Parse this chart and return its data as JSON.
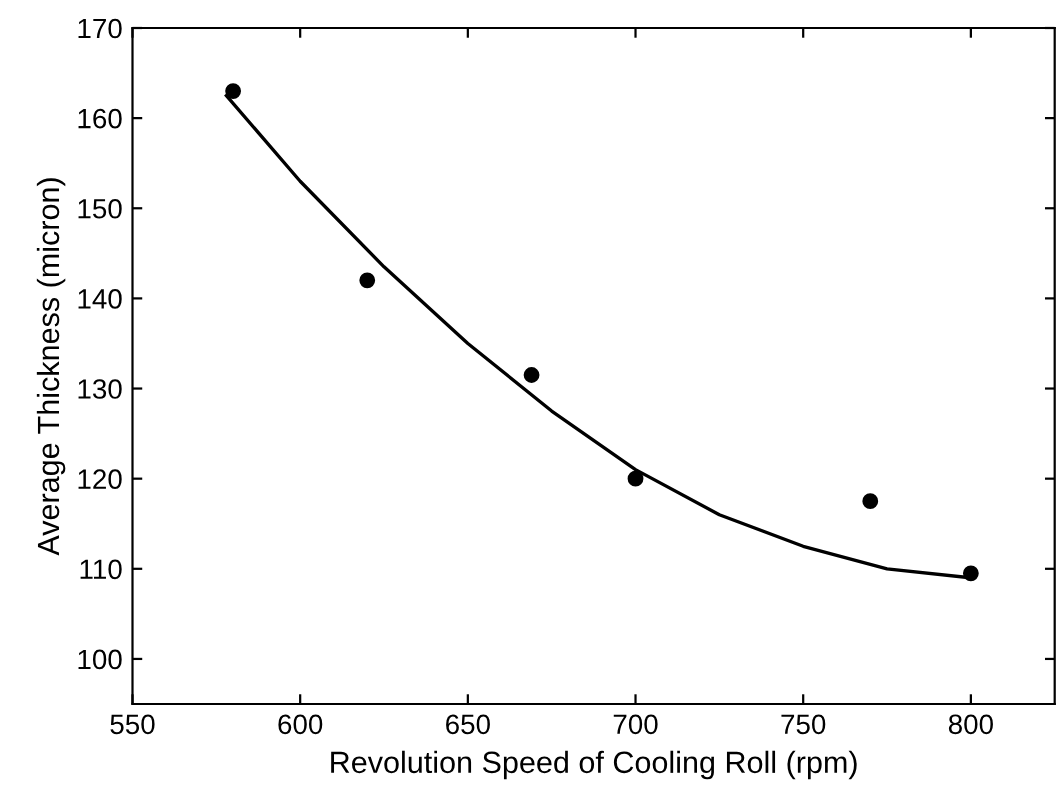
{
  "chart_data": {
    "type": "scatter",
    "xlabel": "Revolution Speed of Cooling Roll (rpm)",
    "ylabel": "Average Thickness (micron)",
    "xlim": [
      550,
      825
    ],
    "ylim": [
      95,
      170
    ],
    "xticks": [
      550,
      600,
      650,
      700,
      750,
      800
    ],
    "yticks": [
      100,
      110,
      120,
      130,
      140,
      150,
      160,
      170
    ],
    "grid": false,
    "legend": false,
    "series": [
      {
        "color": "#000000",
        "marker": "circle",
        "x": [
          580,
          620,
          669,
          700,
          770,
          800
        ],
        "values": [
          163,
          142,
          131.5,
          120,
          117.5,
          109.5
        ]
      },
      {
        "type": "line",
        "color": "#000000",
        "line_style": "solid",
        "marker": "none",
        "x": [
          578,
          600,
          625,
          650,
          675,
          700,
          725,
          750,
          775,
          800
        ],
        "values": [
          162.5,
          153,
          143.5,
          135,
          127.5,
          121,
          116,
          112.5,
          110,
          109
        ]
      }
    ]
  }
}
